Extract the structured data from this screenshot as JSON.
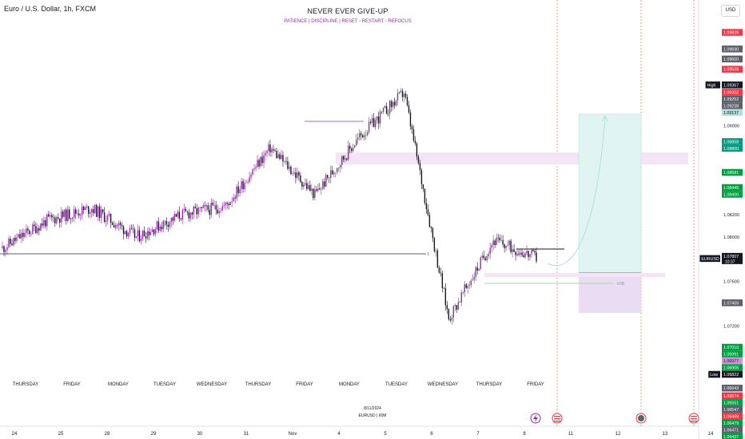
{
  "header": {
    "symbol": "Euro / U.S. Dollar, 1h, FXCM",
    "currency": "USD"
  },
  "title": "NEVER EVER GIVE-UP",
  "subtitle": "PATIENCE  |  DISCIPLINE  |  RESET - RESTART - REFOCUS",
  "footer": {
    "date": "8/11/2024",
    "ticker": "EURUSD  |  60M"
  },
  "chart_data": {
    "type": "candlestick",
    "symbol": "EURUSD",
    "timeframe": "1h",
    "ylim": [
      1.063,
      1.1013
    ],
    "y_ticks": [
      {
        "label": "1.10000",
        "value": 1.1
      },
      {
        "label": "1.09000",
        "value": 1.09
      },
      {
        "label": "1.08200",
        "value": 1.082
      },
      {
        "label": "1.08000",
        "value": 1.08
      },
      {
        "label": "1.07600",
        "value": 1.076
      },
      {
        "label": "1.07200",
        "value": 1.072
      }
    ],
    "x_ticks": [
      "24",
      "25",
      "28",
      "29",
      "30",
      "31",
      "Nov",
      "4",
      "5",
      "6",
      "7",
      "8",
      "11",
      "12",
      "13",
      "14"
    ],
    "day_labels": [
      "THURSDAY",
      "FRIDAY",
      "MONDAY",
      "TUESDAY",
      "WEDNESDAY",
      "THURSDAY",
      "FRIDAY",
      "MONDAY",
      "TUESDAY",
      "WEDNESDAY",
      "THURSDAY",
      "FRIDAY"
    ],
    "session_closes": [
      {
        "day": "24",
        "close": 1.0815
      },
      {
        "day": "25",
        "close": 1.0826
      },
      {
        "day": "28",
        "close": 1.08
      },
      {
        "day": "29",
        "close": 1.082
      },
      {
        "day": "30",
        "close": 1.0828
      },
      {
        "day": "31",
        "close": 1.088
      },
      {
        "day": "Nov 1",
        "close": 1.0838
      },
      {
        "day": "4",
        "close": 1.089
      },
      {
        "day": "5",
        "close": 1.093
      },
      {
        "day": "6",
        "close": 1.0727
      },
      {
        "day": "7",
        "close": 1.0797
      },
      {
        "day": "8",
        "close": 1.0781
      }
    ],
    "price_tags": [
      {
        "label": "1.09839",
        "value": 1.09839,
        "color": "#f23645"
      },
      {
        "label": "1.09690",
        "value": 1.0969,
        "color": "#5d606b"
      },
      {
        "label": "1.09600",
        "value": 1.096,
        "color": "#5d606b"
      },
      {
        "label": "1.09508",
        "value": 1.09508,
        "color": "#f23645"
      },
      {
        "label": "1.09367",
        "value": 1.09367,
        "color": "#131722",
        "tag": "High"
      },
      {
        "label": "1.09302",
        "value": 1.09302,
        "color": "#f23645"
      },
      {
        "label": "1.09252",
        "value": 1.09252,
        "color": "#5d606b"
      },
      {
        "label": "1.09238",
        "value": 1.09238,
        "color": "#5d606b"
      },
      {
        "label": "1.09137",
        "value": 1.09137,
        "color": "#b2dfdb",
        "text_color": "#131722"
      },
      {
        "label": "1.08858",
        "value": 1.08858,
        "color": "#089981"
      },
      {
        "label": "1.08800",
        "value": 1.088,
        "color": "#089981"
      },
      {
        "label": "1.08581",
        "value": 1.08581,
        "color": "#00a040"
      },
      {
        "label": "1.08445",
        "value": 1.08445,
        "color": "#00a040"
      },
      {
        "label": "1.08400",
        "value": 1.084,
        "color": "#00a040"
      },
      {
        "label": "1.07807",
        "value": 1.07807,
        "color": "#131722",
        "tag": "EURUSD",
        "sub": "10:37"
      },
      {
        "label": "1.07409",
        "value": 1.07409,
        "color": "#5d606b"
      },
      {
        "label": "1.07010",
        "value": 1.0701,
        "color": "#00a040"
      },
      {
        "label": "1.06991",
        "value": 1.06991,
        "color": "#00a040"
      },
      {
        "label": "1.06977",
        "value": 1.06977,
        "color": "#ce93d8",
        "text_color": "#131722"
      },
      {
        "label": "1.06906",
        "value": 1.06906,
        "color": "#00a040"
      },
      {
        "label": "1.06822",
        "value": 1.06822,
        "color": "#131722",
        "tag": "Low"
      },
      {
        "label": "1.06643",
        "value": 1.06643,
        "color": "#5d606b"
      },
      {
        "label": "1.06574",
        "value": 1.06574,
        "color": "#f23645"
      },
      {
        "label": "1.06551",
        "value": 1.06551,
        "color": "#00a040"
      },
      {
        "label": "1.06547",
        "value": 1.06547,
        "color": "#5d606b"
      },
      {
        "label": "1.06499",
        "value": 1.06499,
        "color": "#f23645"
      },
      {
        "label": "1.06479",
        "value": 1.06479,
        "color": "#00a040"
      },
      {
        "label": "1.06471",
        "value": 1.06471,
        "color": "#5d606b"
      },
      {
        "label": "1.06437",
        "value": 1.06437,
        "color": "#00a040"
      },
      {
        "label": "1.06394",
        "value": 1.06394,
        "color": "#5d606b"
      },
      {
        "label": "1.06384",
        "value": 1.06384,
        "color": "#f23645"
      },
      {
        "label": "1.06373",
        "value": 1.06373,
        "color": "#00a040"
      }
    ],
    "annotations": {
      "ob_label": "+OB",
      "x_marker": "X",
      "supply_zone": [
        1.0851,
        1.0862
      ],
      "demand_line": 1.0755,
      "ob_zone": [
        1.0735,
        1.074
      ],
      "ob_line": 1.0728,
      "target": 1.09137,
      "entry": 1.07409,
      "stop": 1.06977
    },
    "colors": {
      "candle_up": "#9c27b0",
      "candle_down": "#131722",
      "tp_zone": "#e0f5f1",
      "sl_zone": "#eadcf2",
      "supply_zone": "#f3e5f5"
    },
    "event_icons": [
      "flash-icon",
      "us-flag-icon",
      "us-flag-icon",
      "round-marker-icon",
      "us-flag-icon"
    ]
  }
}
